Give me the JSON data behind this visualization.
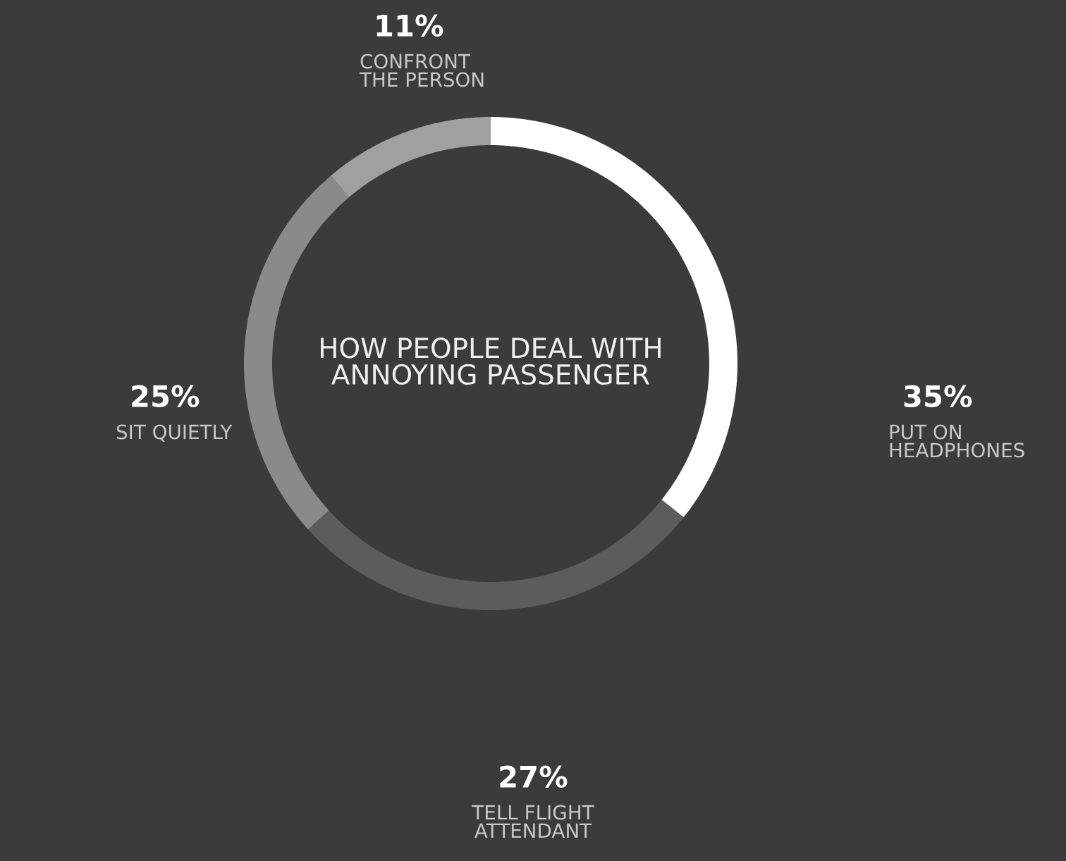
{
  "chart_data": {
    "type": "donut",
    "title": "HOW PEOPLE DEAL WITH\nANNOYING PASSENGER",
    "categories": [
      "PUT ON\nHEADPHONES",
      "TELL FLIGHT\nATTENDANT",
      "SIT QUIETLY",
      "CONFRONT\nTHE PERSON"
    ],
    "values": [
      35,
      27,
      25,
      11
    ],
    "colors": [
      "#ffffff",
      "#5c5c5c",
      "#8a8a8a",
      "#a0a0a0"
    ],
    "value_labels": [
      "35%",
      "27%",
      "25%",
      "11%"
    ]
  }
}
